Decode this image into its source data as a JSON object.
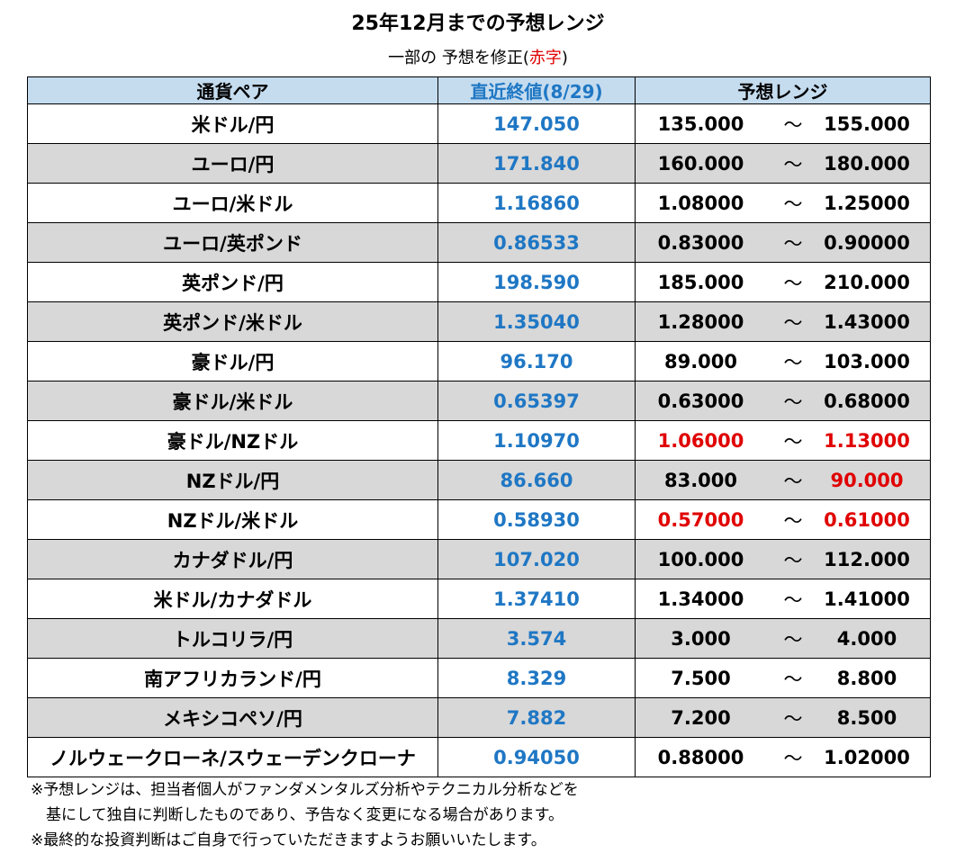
{
  "title": "25年12月までの予想レンジ",
  "subtitle": {
    "prefix": "一部の 予想を修正(",
    "red": "赤字",
    "suffix": ")"
  },
  "headers": {
    "pair": "通貨ペア",
    "last": "直近終値(8/29)",
    "range": "予想レンジ"
  },
  "separator": "〜",
  "rows": [
    {
      "pair": "米ドル/円",
      "last": "147.050",
      "low": "135.000",
      "high": "155.000"
    },
    {
      "pair": "ユーロ/円",
      "last": "171.840",
      "low": "160.000",
      "high": "180.000"
    },
    {
      "pair": "ユーロ/米ドル",
      "last": "1.16860",
      "low": "1.08000",
      "high": "1.25000"
    },
    {
      "pair": "ユーロ/英ポンド",
      "last": "0.86533",
      "low": "0.83000",
      "high": "0.90000"
    },
    {
      "pair": "英ポンド/円",
      "last": "198.590",
      "low": "185.000",
      "high": "210.000"
    },
    {
      "pair": "英ポンド/米ドル",
      "last": "1.35040",
      "low": "1.28000",
      "high": "1.43000"
    },
    {
      "pair": "豪ドル/円",
      "last": "96.170",
      "low": "89.000",
      "high": "103.000"
    },
    {
      "pair": "豪ドル/米ドル",
      "last": "0.65397",
      "low": "0.63000",
      "high": "0.68000"
    },
    {
      "pair": "豪ドル/NZドル",
      "last": "1.10970",
      "low": "1.06000",
      "high": "1.13000",
      "low_red": true,
      "high_red": true
    },
    {
      "pair": "NZドル/円",
      "last": "86.660",
      "low": "83.000",
      "high": "90.000",
      "high_red": true
    },
    {
      "pair": "NZドル/米ドル",
      "last": "0.58930",
      "low": "0.57000",
      "high": "0.61000",
      "low_red": true,
      "high_red": true
    },
    {
      "pair": "カナダドル/円",
      "last": "107.020",
      "low": "100.000",
      "high": "112.000"
    },
    {
      "pair": "米ドル/カナダドル",
      "last": "1.37410",
      "low": "1.34000",
      "high": "1.41000"
    },
    {
      "pair": "トルコリラ/円",
      "last": "3.574",
      "low": "3.000",
      "high": "4.000"
    },
    {
      "pair": "南アフリカランド/円",
      "last": "8.329",
      "low": "7.500",
      "high": "8.800"
    },
    {
      "pair": "メキシコペソ/円",
      "last": "7.882",
      "low": "7.200",
      "high": "8.500"
    },
    {
      "pair": "ノルウェークローネ/スウェーデンクローナ",
      "last": "0.94050",
      "low": "0.88000",
      "high": "1.02000"
    }
  ],
  "notes": [
    "※予想レンジは、担当者個人がファンダメンタルズ分析やテクニカル分析などを",
    "　基にして独自に判断したものであり、予告なく変更になる場合があります。",
    "※最終的な投資判断はご自身で行っていただきますようお願いいたします。"
  ],
  "colors": {
    "header_bg": "#c5dcef",
    "alt_row_bg": "#d8d8d8",
    "last_value": "#1f77c4",
    "revised": "#e00000"
  }
}
